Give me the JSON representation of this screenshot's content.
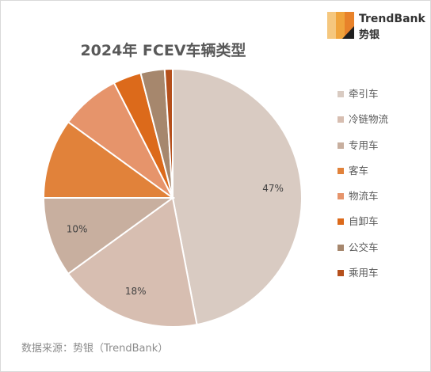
{
  "logo": {
    "name": "TrendBank",
    "sub": "势银",
    "colors": [
      "#F5C77E",
      "#F0A43C",
      "#E8822A",
      "#1F1F1F"
    ]
  },
  "chart_data": {
    "type": "pie",
    "title": "2024年 FCEV车辆类型",
    "categories": [
      "牵引车",
      "冷链物流",
      "专用车",
      "客车",
      "物流车",
      "自卸车",
      "公交车",
      "乘用车"
    ],
    "values": [
      47,
      18,
      10,
      10,
      7.5,
      3.5,
      3,
      1
    ],
    "colors": [
      "#D9CBC2",
      "#D7BEB1",
      "#C8AF9F",
      "#E1823A",
      "#E6946B",
      "#DC6A1B",
      "#A6876D",
      "#B5501C"
    ],
    "data_labels": [
      "47%",
      "18%",
      "10%",
      "",
      "",
      "",
      "",
      ""
    ],
    "start_angle": "12 o'clock",
    "direction": "clockwise",
    "legend_position": "right"
  },
  "source": "数据来源：势银（TrendBank）"
}
